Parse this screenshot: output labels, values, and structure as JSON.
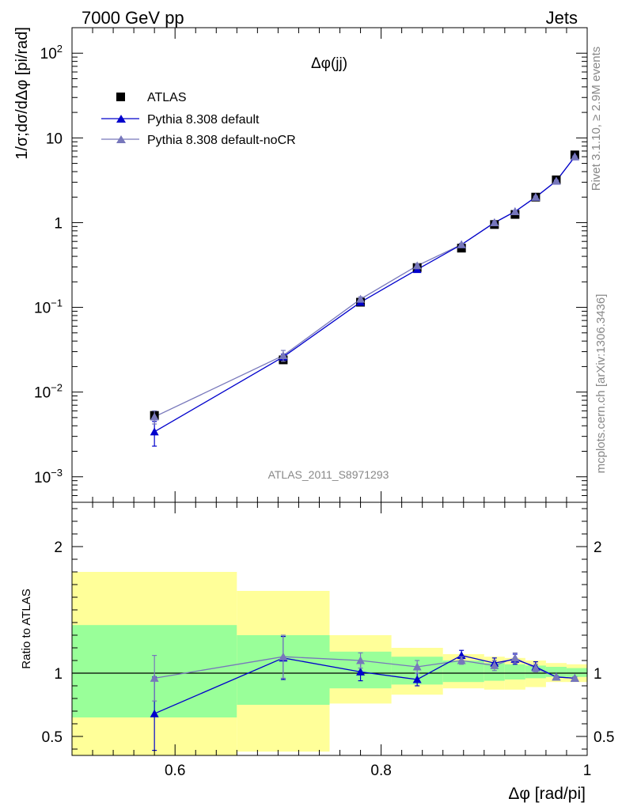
{
  "header": {
    "left": "7000 GeV pp",
    "right": "Jets"
  },
  "plot_title": "Δφ(jj)",
  "watermark": "ATLAS_2011_S8971293",
  "side_text": {
    "top": "Rivet 3.1.10, ≥ 2.9M events",
    "bottom": "mcplots.cern.ch [arXiv:1306.3436]"
  },
  "colors": {
    "data": "#000000",
    "default": "#0000cc",
    "noCR": "#7777bb",
    "band_inner": "#99ff99",
    "band_outer": "#ffff99"
  },
  "chart_data": [
    {
      "type": "scatter",
      "title": "Δφ(jj)",
      "xlabel": "Δφ [rad/pi]",
      "ylabel": "1/σ;dσ/dΔφ [pi/rad]",
      "yscale": "log",
      "xlim": [
        0.5,
        1.0
      ],
      "ylim": [
        0.0005,
        200
      ],
      "legend_position": "top-left",
      "ytick_labels": [
        "10^-3",
        "10^-2",
        "10^-1",
        "1",
        "10",
        "10^2"
      ],
      "series": [
        {
          "name": "ATLAS",
          "marker": "square",
          "x": [
            0.58,
            0.705,
            0.78,
            0.835,
            0.878,
            0.91,
            0.93,
            0.95,
            0.97,
            0.988
          ],
          "y": [
            0.0053,
            0.024,
            0.115,
            0.295,
            0.5,
            0.95,
            1.25,
            2.0,
            3.2,
            6.3
          ]
        },
        {
          "name": "Pythia 8.308 default",
          "marker": "triangle",
          "x": [
            0.58,
            0.705,
            0.78,
            0.835,
            0.878,
            0.91,
            0.93,
            0.95,
            0.97,
            0.988
          ],
          "y": [
            0.0034,
            0.026,
            0.115,
            0.28,
            0.55,
            1.0,
            1.35,
            2.0,
            3.1,
            6.0
          ],
          "yerr_low": [
            0.0011,
            0.002,
            0.006,
            0.01,
            0.02,
            0.03,
            0.04,
            0.05,
            0.07,
            0.1
          ],
          "yerr_high": [
            0.0011,
            0.002,
            0.006,
            0.01,
            0.02,
            0.03,
            0.04,
            0.05,
            0.07,
            0.1
          ]
        },
        {
          "name": "Pythia 8.308 default-noCR",
          "marker": "triangle",
          "x": [
            0.58,
            0.705,
            0.78,
            0.835,
            0.878,
            0.91,
            0.93,
            0.95,
            0.97,
            0.988
          ],
          "y": [
            0.0051,
            0.027,
            0.125,
            0.31,
            0.55,
            1.0,
            1.35,
            2.0,
            3.1,
            6.0
          ],
          "yerr_low": [
            0.0009,
            0.004,
            0.008,
            0.015,
            0.02,
            0.03,
            0.04,
            0.05,
            0.07,
            0.1
          ],
          "yerr_high": [
            0.0009,
            0.004,
            0.008,
            0.015,
            0.02,
            0.03,
            0.04,
            0.05,
            0.07,
            0.1
          ]
        }
      ]
    },
    {
      "type": "line",
      "ylabel": "Ratio to ATLAS",
      "xlabel": "Δφ [rad/pi]",
      "xlim": [
        0.5,
        1.0
      ],
      "ylim": [
        0.35,
        2.35
      ],
      "yticks": [
        0.5,
        1,
        2
      ],
      "xticks": [
        0.6,
        0.8,
        1
      ],
      "reference_line": 1,
      "bands": [
        {
          "x0": 0.5,
          "x1": 0.66,
          "inner": [
            0.65,
            1.38
          ],
          "outer": [
            0.35,
            1.8
          ]
        },
        {
          "x0": 0.66,
          "x1": 0.75,
          "inner": [
            0.75,
            1.3
          ],
          "outer": [
            0.38,
            1.65
          ]
        },
        {
          "x0": 0.75,
          "x1": 0.81,
          "inner": [
            0.88,
            1.17
          ],
          "outer": [
            0.76,
            1.3
          ]
        },
        {
          "x0": 0.81,
          "x1": 0.86,
          "inner": [
            0.91,
            1.13
          ],
          "outer": [
            0.83,
            1.2
          ]
        },
        {
          "x0": 0.86,
          "x1": 0.9,
          "inner": [
            0.93,
            1.1
          ],
          "outer": [
            0.88,
            1.15
          ]
        },
        {
          "x0": 0.9,
          "x1": 0.92,
          "inner": [
            0.94,
            1.08
          ],
          "outer": [
            0.87,
            1.13
          ]
        },
        {
          "x0": 0.92,
          "x1": 0.94,
          "inner": [
            0.95,
            1.07
          ],
          "outer": [
            0.87,
            1.12
          ]
        },
        {
          "x0": 0.94,
          "x1": 0.96,
          "inner": [
            0.96,
            1.06
          ],
          "outer": [
            0.89,
            1.1
          ]
        },
        {
          "x0": 0.96,
          "x1": 0.98,
          "inner": [
            0.97,
            1.05
          ],
          "outer": [
            0.93,
            1.08
          ]
        },
        {
          "x0": 0.98,
          "x1": 1.0,
          "inner": [
            0.97,
            1.04
          ],
          "outer": [
            0.93,
            1.07
          ]
        }
      ],
      "series": [
        {
          "name": "Pythia 8.308 default",
          "x": [
            0.58,
            0.705,
            0.78,
            0.835,
            0.878,
            0.91,
            0.93,
            0.95,
            0.97,
            0.988
          ],
          "y": [
            0.68,
            1.12,
            1.01,
            0.95,
            1.14,
            1.08,
            1.11,
            1.05,
            0.97,
            0.96
          ],
          "yerr": [
            0.29,
            0.17,
            0.07,
            0.05,
            0.04,
            0.04,
            0.04,
            0.04,
            0.01,
            0.01
          ]
        },
        {
          "name": "Pythia 8.308 default-noCR",
          "x": [
            0.58,
            0.705,
            0.78,
            0.835,
            0.878,
            0.91,
            0.93,
            0.95,
            0.97,
            0.988
          ],
          "y": [
            0.96,
            1.13,
            1.1,
            1.05,
            1.1,
            1.06,
            1.12,
            1.04,
            0.97,
            0.96
          ],
          "yerr": [
            0.18,
            0.17,
            0.06,
            0.05,
            0.03,
            0.04,
            0.04,
            0.03,
            0.01,
            0.01
          ]
        }
      ]
    }
  ]
}
